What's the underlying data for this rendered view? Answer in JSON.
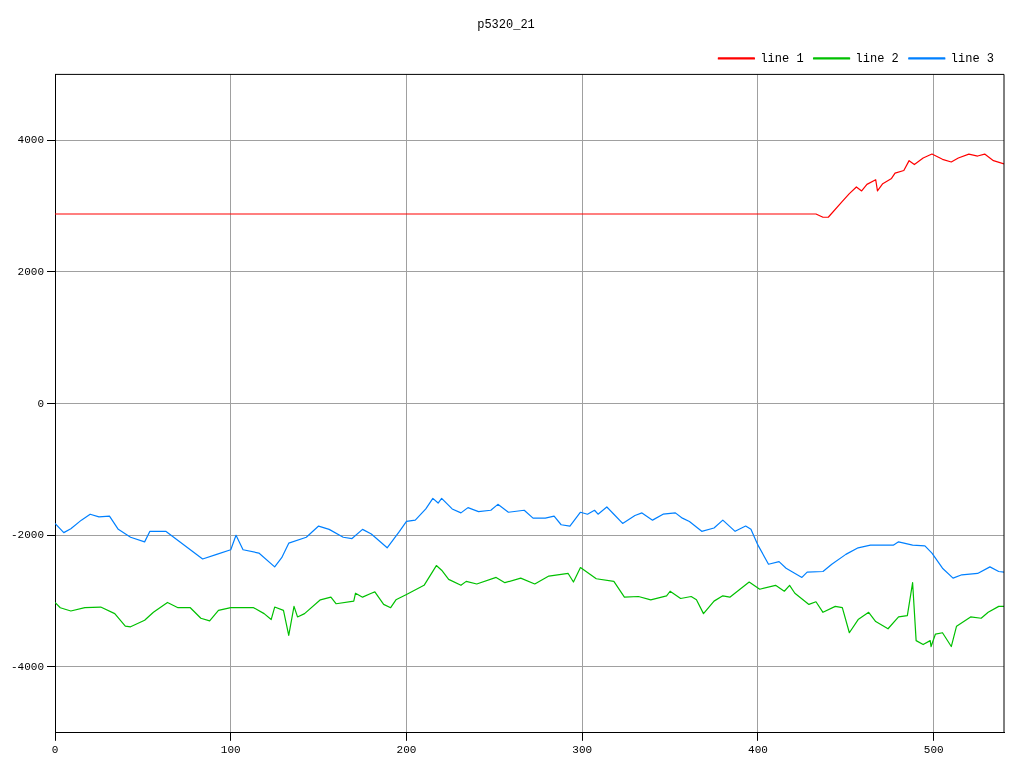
{
  "chart_data": {
    "type": "line",
    "title": "p5320_21",
    "xlim": [
      0,
      540
    ],
    "xticks": [
      0,
      100,
      200,
      300,
      400,
      500
    ],
    "ylim": [
      -5000,
      5000
    ],
    "yticks": [
      -4000,
      -2000,
      0,
      2000,
      4000
    ],
    "grid": true,
    "legend": "top right",
    "marker": "none",
    "line_style": "solid",
    "series": [
      {
        "name": "line 1",
        "color": "#ff0000",
        "x": [
          0,
          100,
          200,
          300,
          400,
          433,
          437,
          440,
          448,
          452,
          456,
          459,
          462,
          467,
          468,
          471,
          476,
          478,
          483,
          486,
          489,
          494,
          499,
          505,
          510,
          514,
          520,
          525,
          529,
          534,
          540
        ],
        "values": [
          2880,
          2880,
          2880,
          2880,
          2880,
          2880,
          2830,
          2830,
          3070,
          3190,
          3290,
          3230,
          3330,
          3400,
          3230,
          3340,
          3420,
          3500,
          3540,
          3690,
          3630,
          3730,
          3790,
          3710,
          3670,
          3730,
          3790,
          3760,
          3790,
          3690,
          3640
        ]
      },
      {
        "name": "line 2",
        "color": "#00c000",
        "x": [
          0,
          3,
          9,
          17,
          26,
          34,
          40,
          43,
          51,
          56,
          64,
          70,
          77,
          83,
          88,
          93,
          100,
          113,
          119,
          123,
          125,
          130,
          133,
          136,
          138,
          142,
          151,
          157,
          160,
          170,
          171,
          175,
          180,
          182,
          187,
          191,
          194,
          200,
          210,
          217,
          220,
          224,
          231,
          234,
          240,
          251,
          256,
          265,
          273,
          281,
          292,
          295,
          299,
          308,
          318,
          324,
          332,
          339,
          348,
          350,
          356,
          362,
          365,
          369,
          375,
          380,
          384,
          395,
          401,
          410,
          415,
          418,
          421,
          429,
          433,
          437,
          444,
          448,
          452,
          457,
          463,
          467,
          474,
          480,
          485,
          488,
          490,
          494,
          498,
          498.5,
          501,
          505,
          510,
          513,
          521,
          527,
          531,
          537,
          540
        ],
        "values": [
          -3020,
          -3100,
          -3150,
          -3100,
          -3090,
          -3190,
          -3380,
          -3390,
          -3290,
          -3170,
          -3020,
          -3100,
          -3100,
          -3260,
          -3300,
          -3140,
          -3100,
          -3100,
          -3190,
          -3280,
          -3090,
          -3140,
          -3520,
          -3080,
          -3240,
          -3190,
          -2980,
          -2940,
          -3040,
          -3000,
          -2880,
          -2940,
          -2880,
          -2860,
          -3050,
          -3100,
          -2980,
          -2900,
          -2760,
          -2460,
          -2530,
          -2670,
          -2760,
          -2700,
          -2740,
          -2640,
          -2720,
          -2650,
          -2740,
          -2620,
          -2580,
          -2710,
          -2490,
          -2660,
          -2700,
          -2940,
          -2930,
          -2980,
          -2920,
          -2850,
          -2960,
          -2930,
          -2980,
          -3190,
          -3000,
          -2920,
          -2940,
          -2710,
          -2820,
          -2760,
          -2850,
          -2760,
          -2880,
          -3050,
          -3010,
          -3170,
          -3080,
          -3100,
          -3480,
          -3280,
          -3170,
          -3310,
          -3420,
          -3240,
          -3220,
          -2720,
          -3600,
          -3660,
          -3600,
          -3690,
          -3500,
          -3480,
          -3690,
          -3380,
          -3240,
          -3260,
          -3170,
          -3080,
          -3080
        ]
      },
      {
        "name": "line 3",
        "color": "#0080ff",
        "x": [
          0,
          5,
          9,
          15,
          20,
          25,
          31,
          36,
          43,
          51,
          54,
          63,
          70,
          77,
          84,
          92,
          100,
          103,
          107,
          116,
          125,
          129,
          133,
          143,
          150,
          156,
          164,
          169,
          175,
          180,
          189,
          196,
          200,
          205,
          211,
          215,
          218,
          220,
          226,
          231,
          235,
          241,
          248,
          252,
          258,
          267,
          272,
          279,
          284,
          288,
          293,
          299,
          303,
          307,
          309,
          314,
          318,
          323,
          330,
          334,
          340,
          346,
          353,
          357,
          361,
          368,
          375,
          380,
          387,
          393,
          396,
          400,
          406,
          412,
          416,
          425,
          428,
          437,
          442,
          450,
          457,
          464,
          477,
          480,
          488,
          495,
          499,
          505,
          511,
          516,
          525,
          532,
          537,
          540
        ],
        "values": [
          -1820,
          -1960,
          -1900,
          -1770,
          -1680,
          -1720,
          -1710,
          -1910,
          -2030,
          -2100,
          -1940,
          -1940,
          -2080,
          -2220,
          -2360,
          -2290,
          -2220,
          -2000,
          -2220,
          -2270,
          -2480,
          -2340,
          -2120,
          -2030,
          -1860,
          -1910,
          -2030,
          -2050,
          -1910,
          -1980,
          -2190,
          -1940,
          -1790,
          -1770,
          -1600,
          -1440,
          -1510,
          -1440,
          -1600,
          -1660,
          -1580,
          -1640,
          -1620,
          -1530,
          -1650,
          -1620,
          -1740,
          -1740,
          -1710,
          -1840,
          -1860,
          -1650,
          -1680,
          -1620,
          -1680,
          -1570,
          -1680,
          -1820,
          -1700,
          -1660,
          -1770,
          -1680,
          -1660,
          -1740,
          -1790,
          -1940,
          -1890,
          -1770,
          -1940,
          -1860,
          -1910,
          -2150,
          -2440,
          -2400,
          -2500,
          -2640,
          -2560,
          -2550,
          -2440,
          -2290,
          -2190,
          -2150,
          -2150,
          -2100,
          -2150,
          -2160,
          -2270,
          -2500,
          -2650,
          -2600,
          -2580,
          -2480,
          -2550,
          -2560
        ]
      }
    ]
  }
}
